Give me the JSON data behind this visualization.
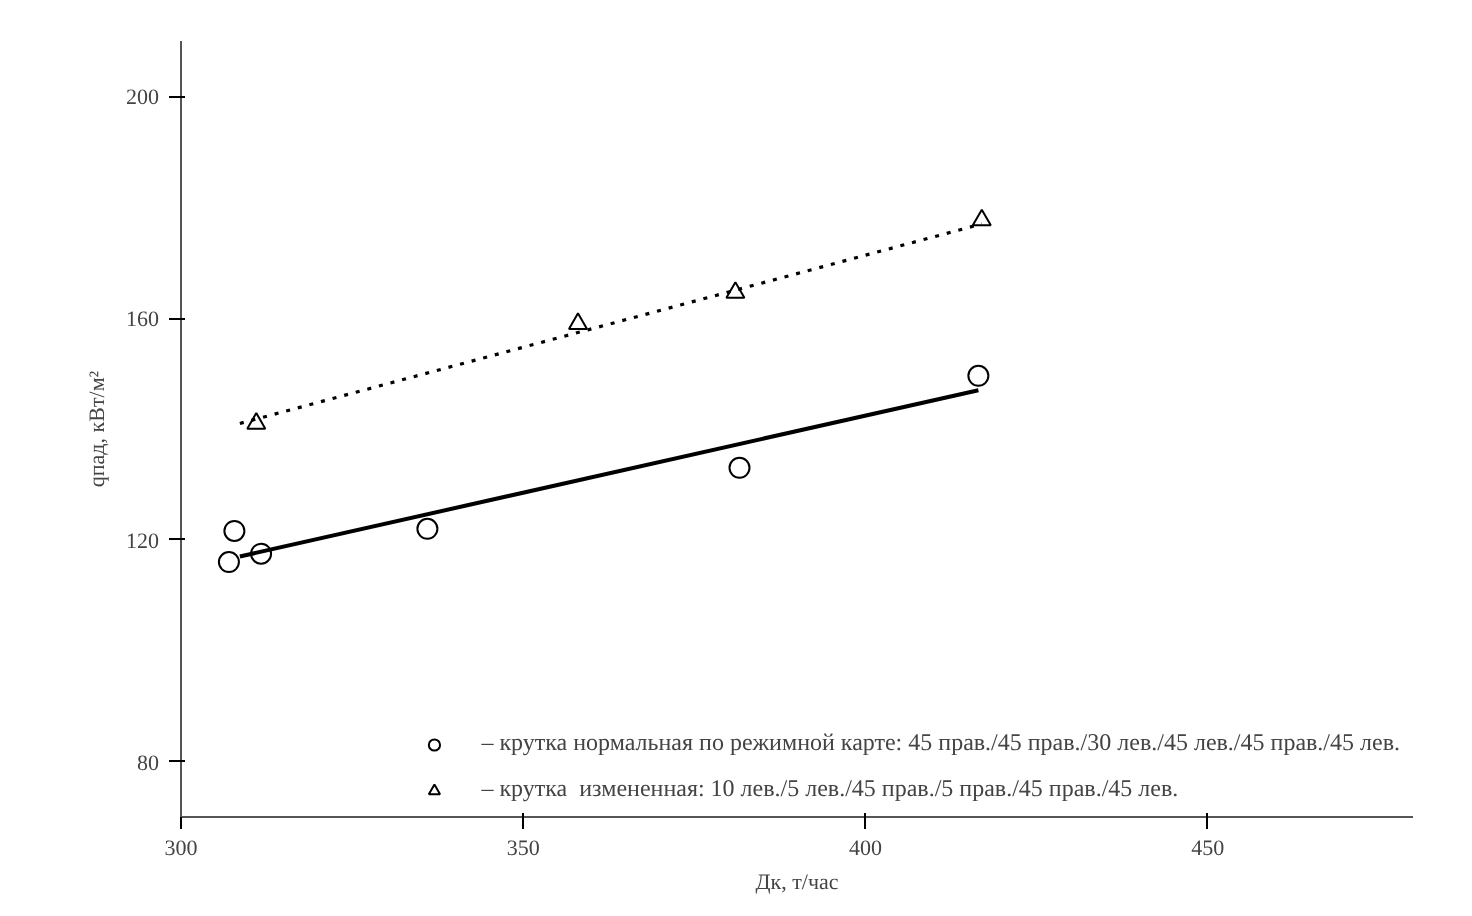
{
  "chart_data": {
    "type": "scatter",
    "xlabel": "Дк, т/час",
    "ylabel": "qпад, кВт/м²",
    "xlim": [
      300,
      480
    ],
    "ylim": [
      70,
      210
    ],
    "xticks": [
      300,
      350,
      400,
      450
    ],
    "yticks": [
      80,
      120,
      160,
      200
    ],
    "grid": false,
    "legend": "bottom",
    "series": [
      {
        "name": "– крутка нормальная по режимной карте: 45 прав./45 прав./30 лев./45 лев./45 прав./45 лев.",
        "color": "#000000",
        "marker": "circle",
        "x": [
          307.8,
          307,
          311.7,
          336,
          381.6,
          416.5
        ],
        "values": [
          121.6,
          116,
          117.5,
          122,
          133,
          149.6
        ]
      },
      {
        "name": "– крутка  измененная: 10 лев./5 лев./45 прав./5 прав./45 прав./45 лев.",
        "color": "#000000",
        "marker": "triangle",
        "x": [
          311,
          358,
          381,
          417
        ],
        "values": [
          141,
          159,
          164.6,
          177.7
        ]
      },
      {
        "type": "line",
        "color": "#000000",
        "line_style": "solid",
        "marker": "none",
        "x": [
          308.6,
          416.5
        ],
        "values": [
          117,
          147
        ]
      },
      {
        "type": "line",
        "color": "#000000",
        "line_style": "dotted",
        "marker": "none",
        "x": [
          308.6,
          417
        ],
        "values": [
          141,
          177
        ]
      }
    ]
  }
}
